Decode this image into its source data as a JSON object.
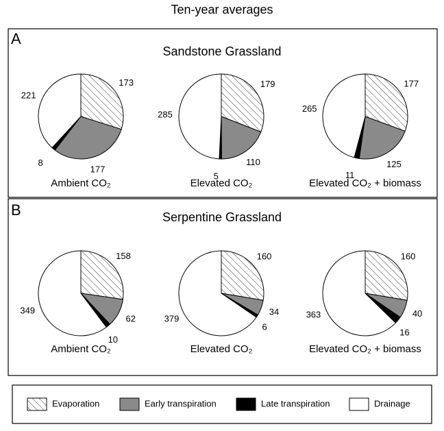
{
  "title": "Ten-year averages",
  "panels": [
    {
      "label": "A",
      "title": "Sandstone Grassland"
    },
    {
      "label": "B",
      "title": "Serpentine Grassland"
    }
  ],
  "chart_data": [
    {
      "type": "pie",
      "title": "Ambient CO₂",
      "categories": [
        "Evaporation",
        "Early transpiration",
        "Late transpiration",
        "Drainage"
      ],
      "values": [
        173,
        177,
        8,
        221
      ],
      "colors": [
        "#ffffff",
        "#8a8a8a",
        "#000000",
        "#ffffff"
      ],
      "hatch": [
        true,
        false,
        false,
        false
      ]
    },
    {
      "type": "pie",
      "title": "Elevated CO₂",
      "categories": [
        "Evaporation",
        "Early transpiration",
        "Late transpiration",
        "Drainage"
      ],
      "values": [
        179,
        110,
        5,
        285
      ],
      "colors": [
        "#ffffff",
        "#8a8a8a",
        "#000000",
        "#ffffff"
      ],
      "hatch": [
        true,
        false,
        false,
        false
      ]
    },
    {
      "type": "pie",
      "title": "Elevated CO₂ + biomass",
      "categories": [
        "Evaporation",
        "Early transpiration",
        "Late transpiration",
        "Drainage"
      ],
      "values": [
        177,
        125,
        11,
        265
      ],
      "colors": [
        "#ffffff",
        "#8a8a8a",
        "#000000",
        "#ffffff"
      ],
      "hatch": [
        true,
        false,
        false,
        false
      ]
    },
    {
      "type": "pie",
      "title": "Ambient CO₂",
      "categories": [
        "Evaporation",
        "Early transpiration",
        "Late transpiration",
        "Drainage"
      ],
      "values": [
        158,
        62,
        10,
        349
      ],
      "colors": [
        "#ffffff",
        "#8a8a8a",
        "#000000",
        "#ffffff"
      ],
      "hatch": [
        true,
        false,
        false,
        false
      ]
    },
    {
      "type": "pie",
      "title": "Elevated CO₂",
      "categories": [
        "Evaporation",
        "Early transpiration",
        "Late transpiration",
        "Drainage"
      ],
      "values": [
        160,
        34,
        6,
        379
      ],
      "colors": [
        "#ffffff",
        "#8a8a8a",
        "#000000",
        "#ffffff"
      ],
      "hatch": [
        true,
        false,
        false,
        false
      ]
    },
    {
      "type": "pie",
      "title": "Elevated CO₂ + biomass",
      "categories": [
        "Evaporation",
        "Early transpiration",
        "Late transpiration",
        "Drainage"
      ],
      "values": [
        160,
        40,
        16,
        363
      ],
      "colors": [
        "#ffffff",
        "#8a8a8a",
        "#000000",
        "#ffffff"
      ],
      "hatch": [
        true,
        false,
        false,
        false
      ]
    }
  ]
}
